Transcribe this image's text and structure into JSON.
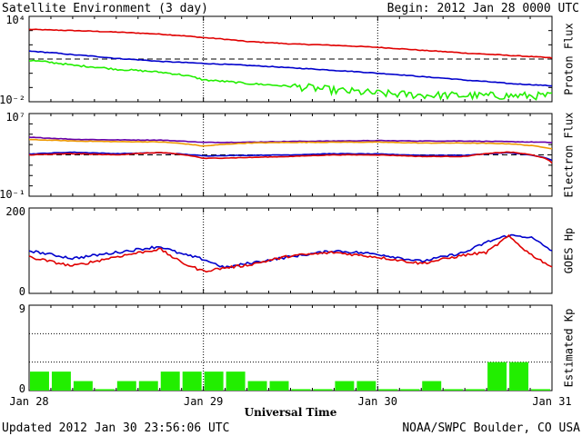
{
  "header": {
    "title": "Satellite Environment (3 day)",
    "begin": "Begin:  2012 Jan 28 0000 UTC"
  },
  "footer": {
    "updated": "Updated 2012 Jan 30 23:56:06 UTC",
    "credit": "NOAA/SWPC Boulder, CO USA"
  },
  "colors": {
    "red": "#e00000",
    "blue": "#0000cc",
    "green": "#22ee00",
    "orange": "#ee9900",
    "purple": "#6600aa",
    "bar": "#22ee00"
  },
  "chart_data": [
    {
      "type": "line",
      "ylabel": "Proton Flux",
      "yscale": "log",
      "ylim": [
        0.01,
        10000
      ],
      "yticks": [
        "10⁴",
        "10⁻²"
      ],
      "threshold": 10,
      "x": [
        0,
        6,
        12,
        18,
        24,
        30,
        36,
        42,
        48,
        54,
        60,
        66,
        72
      ],
      "series": [
        {
          "color": "red",
          "values": [
            1200,
            1000,
            780,
            560,
            320,
            170,
            115,
            92,
            66,
            41,
            26,
            18,
            12
          ]
        },
        {
          "color": "blue",
          "values": [
            36,
            20,
            11,
            6.8,
            4.9,
            3.6,
            2.4,
            1.6,
            1.0,
            0.58,
            0.33,
            0.19,
            0.13
          ]
        },
        {
          "color": "green",
          "values": [
            8,
            3.6,
            1.9,
            1.2,
            0.34,
            0.19,
            0.12,
            0.062,
            0.038,
            0.029,
            0.027,
            0.026,
            0.026
          ]
        }
      ]
    },
    {
      "type": "line",
      "ylabel": "Electron Flux",
      "yscale": "log",
      "ylim": [
        0.1,
        10000000
      ],
      "yticks": [
        "10⁷",
        "10⁻¹"
      ],
      "threshold": 1000,
      "x": [
        0,
        6,
        12,
        18,
        24,
        30,
        36,
        42,
        48,
        54,
        60,
        66,
        72
      ],
      "series": [
        {
          "color": "purple",
          "values": [
            50000,
            32000,
            28000,
            27000,
            16000,
            17000,
            20000,
            22000,
            24000,
            22000,
            22000,
            19000,
            16000
          ]
        },
        {
          "color": "orange",
          "values": [
            30000,
            22000,
            19000,
            18000,
            7000,
            14000,
            16000,
            17000,
            17000,
            14000,
            14000,
            12000,
            4000
          ]
        },
        {
          "color": "blue",
          "values": [
            1200,
            1800,
            1300,
            1600,
            800,
            900,
            1000,
            1300,
            1200,
            900,
            900,
            1600,
            300
          ]
        },
        {
          "color": "red",
          "values": [
            1000,
            1300,
            1000,
            1700,
            450,
            550,
            700,
            1000,
            1000,
            700,
            700,
            1900,
            160
          ]
        }
      ]
    },
    {
      "type": "line",
      "ylabel": "GOES Hp",
      "ylim": [
        0,
        200
      ],
      "yticks": [
        "200",
        "0"
      ],
      "x": [
        0,
        6,
        12,
        18,
        21,
        24,
        27,
        30,
        36,
        42,
        48,
        54,
        60,
        63,
        66,
        69,
        72
      ],
      "series": [
        {
          "color": "blue",
          "values": [
            100,
            82,
            96,
            110,
            92,
            80,
            60,
            70,
            86,
            100,
            92,
            75,
            96,
            120,
            136,
            132,
            100
          ]
        },
        {
          "color": "red",
          "values": [
            85,
            64,
            86,
            104,
            72,
            52,
            60,
            66,
            88,
            96,
            85,
            70,
            90,
            96,
            134,
            92,
            62
          ]
        }
      ]
    },
    {
      "type": "bar",
      "ylabel": "Estimated Kp",
      "ylim": [
        0,
        9
      ],
      "yticks": [
        "9",
        "0"
      ],
      "grid_levels": [
        3,
        6,
        9
      ],
      "values": [
        2,
        2,
        1,
        0,
        1,
        1,
        2,
        2,
        2,
        2,
        1,
        1,
        0,
        0,
        1,
        1,
        0,
        0,
        1,
        0,
        0,
        3,
        3,
        0
      ],
      "xlabel": "Universal Time",
      "xticks": [
        "Jan 28",
        "Jan 29",
        "Jan 30",
        "Jan 31"
      ]
    }
  ]
}
